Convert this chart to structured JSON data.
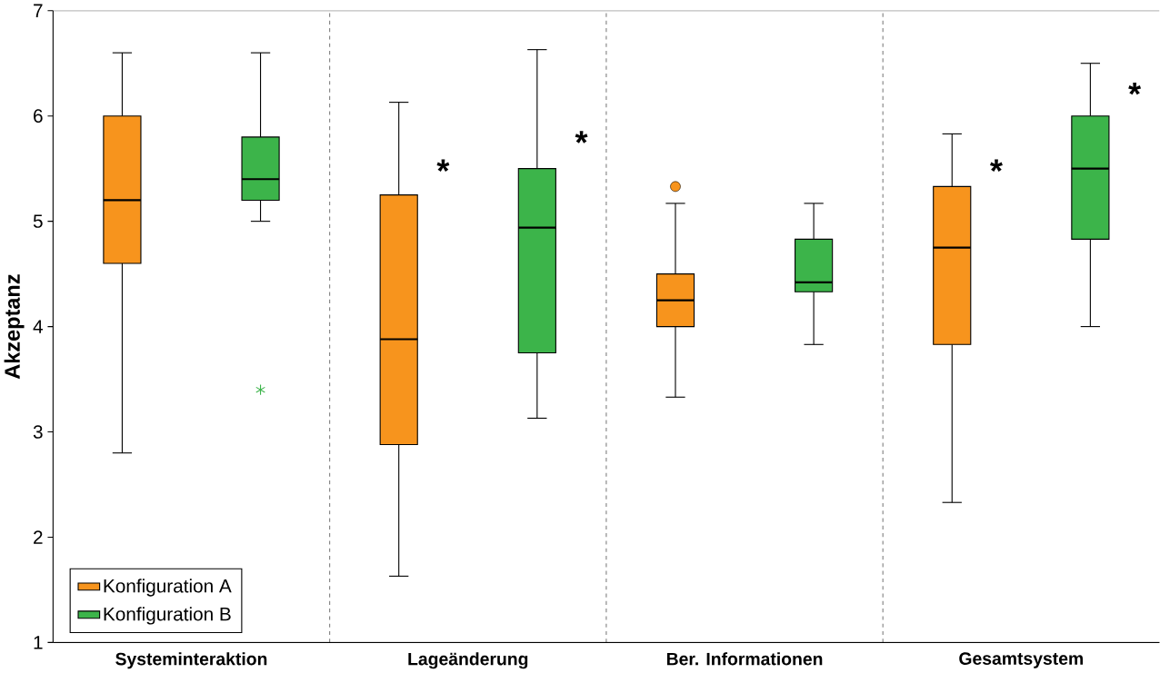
{
  "chart_data": {
    "type": "box",
    "ylabel": "Akzeptanz",
    "categories": [
      "Systeminteraktion",
      "Lageänderung",
      "Ber. Informationen",
      "Gesamtsystem"
    ],
    "series": [
      {
        "name": "Konfiguration A",
        "color": "#f7941d",
        "marker": "circle",
        "boxes": [
          {
            "low": 2.8,
            "q1": 4.6,
            "median": 5.2,
            "q3": 6.0,
            "high": 6.6
          },
          {
            "low": 1.63,
            "q1": 2.88,
            "median": 3.88,
            "q3": 5.25,
            "high": 6.13
          },
          {
            "low": 3.33,
            "q1": 4.0,
            "median": 4.25,
            "q3": 4.5,
            "high": 5.17,
            "outliers": [
              5.33
            ]
          },
          {
            "low": 2.33,
            "q1": 3.83,
            "median": 4.75,
            "q3": 5.33,
            "high": 5.83
          }
        ]
      },
      {
        "name": "Konfiguration B",
        "color": "#3cb44a",
        "marker": "star",
        "boxes": [
          {
            "low": 5.0,
            "q1": 5.2,
            "median": 5.4,
            "q3": 5.8,
            "high": 6.6,
            "outliers": [
              3.4
            ]
          },
          {
            "low": 3.13,
            "q1": 3.75,
            "median": 4.94,
            "q3": 5.5,
            "high": 6.63
          },
          {
            "low": 3.83,
            "q1": 4.33,
            "median": 4.42,
            "q3": 4.83,
            "high": 5.17
          },
          {
            "low": 4.0,
            "q1": 4.83,
            "median": 5.5,
            "q3": 6.0,
            "high": 6.5
          }
        ]
      }
    ],
    "ylim": [
      1,
      7
    ],
    "yticks": [
      1,
      2,
      3,
      4,
      5,
      6,
      7
    ],
    "grid": "x",
    "legend": "bottom left",
    "annotations": [
      "*",
      "*",
      "*",
      "*"
    ]
  }
}
